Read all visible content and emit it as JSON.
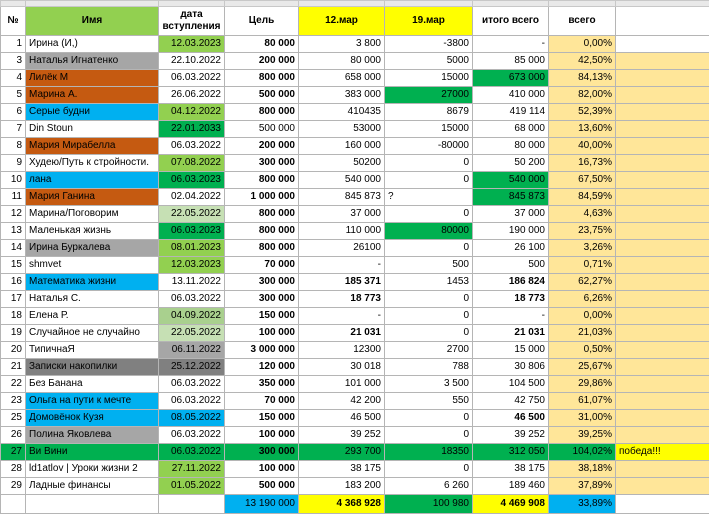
{
  "headers": {
    "num": "№",
    "name": "Имя",
    "date": "дата вступления",
    "goal": "Цель",
    "mar12": "12.мар",
    "mar19": "19.мар",
    "total": "итого всего",
    "pct": "всего"
  },
  "colors": {
    "header_green": "#92d050",
    "header_yellow": "#ffff00",
    "pct_yellow": "#ffe699",
    "row_green": "#00b050"
  },
  "rows": [
    {
      "num": "1",
      "name": "Ирина (И,)",
      "date": "12.03.2023",
      "goal": "80 000",
      "m12": "3 800",
      "m19": "-3800",
      "total": "-",
      "pct": "0,00%",
      "name_bg": "#ffffff",
      "date_bg": "#92d050",
      "goal_bold": true,
      "total_bg": "#ffffff",
      "pct_bg": "#ffe699",
      "extra": "",
      "extra_bg": "#ffffff"
    },
    {
      "num": "3",
      "name": "Наталья Игнатенко",
      "date": "22.10.2022",
      "goal": "200 000",
      "m12": "80 000",
      "m19": "5000",
      "total": "85 000",
      "pct": "42,50%",
      "name_bg": "#a6a6a6",
      "date_bg": "#ffffff",
      "goal_bold": true,
      "total_bg": "#ffffff",
      "pct_bg": "#ffe699",
      "extra": "",
      "extra_bg": "#ffe699"
    },
    {
      "num": "4",
      "name": "Лилёк М",
      "date": "06.03.2022",
      "goal": "800 000",
      "m12": "658 000",
      "m19": "15000",
      "total": "673 000",
      "pct": "84,13%",
      "name_bg": "#c55a11",
      "date_bg": "#ffffff",
      "goal_bold": true,
      "total_bg": "#00b050",
      "pct_bg": "#ffe699",
      "extra": "",
      "extra_bg": "#ffe699"
    },
    {
      "num": "5",
      "name": "Марина А.",
      "date": "26.06.2022",
      "goal": "500 000",
      "m12": "383 000",
      "m19": "27000",
      "total": "410 000",
      "pct": "82,00%",
      "name_bg": "#c55a11",
      "date_bg": "#ffffff",
      "goal_bold": true,
      "total_bg": "#ffffff",
      "pct_bg": "#ffe699",
      "extra": "",
      "extra_bg": "#ffe699",
      "m19_bg": "#00b050"
    },
    {
      "num": "6",
      "name": "Серые будни",
      "date": "04.12.2022",
      "goal": "800 000",
      "m12": "410435",
      "m19": "8679",
      "total": "419 114",
      "pct": "52,39%",
      "name_bg": "#00b0f0",
      "date_bg": "#92d050",
      "goal_bold": true,
      "total_bg": "#ffffff",
      "pct_bg": "#ffe699",
      "extra": "",
      "extra_bg": "#ffe699"
    },
    {
      "num": "7",
      "name": "Din Stoun",
      "date": "22.01.2033",
      "goal": "500 000",
      "m12": "53000",
      "m19": "15000",
      "total": "68 000",
      "pct": "13,60%",
      "name_bg": "#ffffff",
      "date_bg": "#00b050",
      "goal_bold": false,
      "total_bg": "#ffffff",
      "pct_bg": "#ffe699",
      "extra": "",
      "extra_bg": "#ffe699"
    },
    {
      "num": "8",
      "name": "Мария Мирабелла",
      "date": "06.03.2022",
      "goal": "200 000",
      "m12": "160 000",
      "m19": "-80000",
      "total": "80 000",
      "pct": "40,00%",
      "name_bg": "#c55a11",
      "date_bg": "#ffffff",
      "goal_bold": true,
      "total_bg": "#ffffff",
      "pct_bg": "#ffe699",
      "extra": "",
      "extra_bg": "#ffe699"
    },
    {
      "num": "9",
      "name": "Худею/Путь к стройности.",
      "date": "07.08.2022",
      "goal": "300 000",
      "m12": "50200",
      "m19": "0",
      "total": "50 200",
      "pct": "16,73%",
      "name_bg": "#ffffff",
      "date_bg": "#92d050",
      "goal_bold": true,
      "total_bg": "#ffffff",
      "pct_bg": "#ffe699",
      "extra": "",
      "extra_bg": "#ffe699"
    },
    {
      "num": "10",
      "name": "лана",
      "date": "06.03.2023",
      "goal": "800 000",
      "m12": "540 000",
      "m19": "0",
      "total": "540 000",
      "pct": "67,50%",
      "name_bg": "#00b0f0",
      "date_bg": "#00b050",
      "goal_bold": true,
      "total_bg": "#00b050",
      "pct_bg": "#ffe699",
      "extra": "",
      "extra_bg": "#ffe699"
    },
    {
      "num": "11",
      "name": "Мария Ганина",
      "date": "02.04.2022",
      "goal": "1 000 000",
      "m12": "845 873",
      "m19": "",
      "total": "845 873",
      "pct": "84,59%",
      "name_bg": "#c55a11",
      "date_bg": "#ffffff",
      "goal_bold": true,
      "total_bg": "#00b050",
      "pct_bg": "#ffe699",
      "extra": "",
      "extra_bg": "#ffe699",
      "m19_note": "?"
    },
    {
      "num": "12",
      "name": "Марина/Поговорим",
      "date": "22.05.2022",
      "goal": "800 000",
      "m12": "37 000",
      "m19": "0",
      "total": "37 000",
      "pct": "4,63%",
      "name_bg": "#ffffff",
      "date_bg": "#c6e0b4",
      "goal_bold": true,
      "total_bg": "#ffffff",
      "pct_bg": "#ffe699",
      "extra": "",
      "extra_bg": "#ffe699"
    },
    {
      "num": "13",
      "name": "Маленькая жизнь",
      "date": "06.03.2023",
      "goal": "800 000",
      "m12": "110 000",
      "m19": "80000",
      "total": "190 000",
      "pct": "23,75%",
      "name_bg": "#ffffff",
      "date_bg": "#00b050",
      "goal_bold": true,
      "total_bg": "#ffffff",
      "pct_bg": "#ffe699",
      "extra": "",
      "extra_bg": "#ffe699",
      "m19_bg": "#00b050"
    },
    {
      "num": "14",
      "name": "Ирина Буркалева",
      "date": "08.01.2023",
      "goal": "800 000",
      "m12": "26100",
      "m19": "0",
      "total": "26 100",
      "pct": "3,26%",
      "name_bg": "#a6a6a6",
      "date_bg": "#92d050",
      "goal_bold": true,
      "total_bg": "#ffffff",
      "pct_bg": "#ffe699",
      "extra": "",
      "extra_bg": "#ffe699"
    },
    {
      "num": "15",
      "name": "shmvet",
      "date": "12.03.2023",
      "goal": "70 000",
      "m12": "-",
      "m19": "500",
      "total": "500",
      "pct": "0,71%",
      "name_bg": "#ffffff",
      "date_bg": "#92d050",
      "goal_bold": true,
      "total_bg": "#ffffff",
      "pct_bg": "#ffe699",
      "extra": "",
      "extra_bg": "#ffe699"
    },
    {
      "num": "16",
      "name": "Математика жизни",
      "date": "13.11.2022",
      "goal": "300 000",
      "m12": "185 371",
      "m19": "1453",
      "total": "186 824",
      "pct": "62,27%",
      "name_bg": "#00b0f0",
      "date_bg": "#ffffff",
      "goal_bold": true,
      "total_bg": "#ffffff",
      "pct_bg": "#ffe699",
      "extra": "",
      "extra_bg": "#ffe699",
      "m12_bold": true,
      "total_bold": true
    },
    {
      "num": "17",
      "name": "Наталья С.",
      "date": "06.03.2022",
      "goal": "300 000",
      "m12": "18 773",
      "m19": "0",
      "total": "18 773",
      "pct": "6,26%",
      "name_bg": "#ffffff",
      "date_bg": "#ffffff",
      "goal_bold": true,
      "total_bg": "#ffffff",
      "pct_bg": "#ffe699",
      "extra": "",
      "extra_bg": "#ffe699",
      "m12_bold": true,
      "total_bold": true
    },
    {
      "num": "18",
      "name": "Елена Р.",
      "date": "04.09.2022",
      "goal": "150 000",
      "m12": "-",
      "m19": "0",
      "total": "-",
      "pct": "0,00%",
      "name_bg": "#ffffff",
      "date_bg": "#a9d08e",
      "goal_bold": true,
      "total_bg": "#ffffff",
      "pct_bg": "#ffe699",
      "extra": "",
      "extra_bg": "#ffe699"
    },
    {
      "num": "19",
      "name": " Случайное не случайно",
      "date": "22.05.2022",
      "goal": "100 000",
      "m12": "21 031",
      "m19": "0",
      "total": "21 031",
      "pct": "21,03%",
      "name_bg": "#ffffff",
      "date_bg": "#c6e0b4",
      "goal_bold": true,
      "total_bg": "#ffffff",
      "pct_bg": "#ffe699",
      "extra": "",
      "extra_bg": "#ffe699",
      "m12_bold": true,
      "total_bold": true
    },
    {
      "num": "20",
      "name": "ТипичнаЯ",
      "date": "06.11.2022",
      "goal": "3 000 000",
      "m12": "12300",
      "m19": "2700",
      "total": "15 000",
      "pct": "0,50%",
      "name_bg": "#ffffff",
      "date_bg": "#a6a6a6",
      "goal_bold": true,
      "total_bg": "#ffffff",
      "pct_bg": "#ffe699",
      "extra": "",
      "extra_bg": "#ffe699"
    },
    {
      "num": "21",
      "name": "Записки накопилки",
      "date": "25.12.2022",
      "goal": "120 000",
      "m12": "30 018",
      "m19": "788",
      "total": "30 806",
      "pct": "25,67%",
      "name_bg": "#808080",
      "date_bg": "#808080",
      "goal_bold": true,
      "total_bg": "#ffffff",
      "pct_bg": "#ffe699",
      "extra": "",
      "extra_bg": "#ffe699"
    },
    {
      "num": "22",
      "name": "Без Банана",
      "date": "06.03.2022",
      "goal": "350 000",
      "m12": "101 000",
      "m19": "3 500",
      "total": "104 500",
      "pct": "29,86%",
      "name_bg": "#ffffff",
      "date_bg": "#ffffff",
      "goal_bold": true,
      "total_bg": "#ffffff",
      "pct_bg": "#ffe699",
      "extra": "",
      "extra_bg": "#ffe699"
    },
    {
      "num": "23",
      "name": "Ольга на пути к мечте",
      "date": "06.03.2022",
      "goal": "70 000",
      "m12": "42 200",
      "m19": "550",
      "total": "42 750",
      "pct": "61,07%",
      "name_bg": "#00b0f0",
      "date_bg": "#ffffff",
      "goal_bold": true,
      "total_bg": "#ffffff",
      "pct_bg": "#ffe699",
      "extra": "",
      "extra_bg": "#ffe699"
    },
    {
      "num": "25",
      "name": " Домовёнок Кузя",
      "date": "08.05.2022",
      "goal": "150 000",
      "m12": "46 500",
      "m19": "0",
      "total": "46 500",
      "pct": "31,00%",
      "name_bg": "#00b0f0",
      "date_bg": "#00b0f0",
      "goal_bold": true,
      "total_bg": "#ffffff",
      "pct_bg": "#ffe699",
      "extra": "",
      "extra_bg": "#ffe699",
      "total_bold": true
    },
    {
      "num": "26",
      "name": "Полина Яковлева",
      "date": "06.03.2022",
      "goal": "100 000",
      "m12": "39 252",
      "m19": "0",
      "total": "39 252",
      "pct": "39,25%",
      "name_bg": "#a6a6a6",
      "date_bg": "#ffffff",
      "goal_bold": true,
      "total_bg": "#ffffff",
      "pct_bg": "#ffe699",
      "extra": "",
      "extra_bg": "#ffe699"
    },
    {
      "num": "27",
      "name": "Ви Вини",
      "date": "06.03.2022",
      "goal": "300 000",
      "m12": "293 700",
      "m19": "18350",
      "total": "312 050",
      "pct": "104,02%",
      "name_bg": "#00b050",
      "date_bg": "#00b050",
      "goal_bold": true,
      "total_bg": "#00b050",
      "pct_bg": "#00b050",
      "extra": "победа!!!",
      "extra_bg": "#ffff00",
      "row_bg": "#00b050"
    },
    {
      "num": "28",
      "name": "ld1atlov |  Уроки жизни 2",
      "date": "27.11.2022",
      "goal": "100 000",
      "m12": "38 175",
      "m19": "0",
      "total": "38 175",
      "pct": "38,18%",
      "name_bg": "#ffffff",
      "date_bg": "#92d050",
      "goal_bold": true,
      "total_bg": "#ffffff",
      "pct_bg": "#ffe699",
      "extra": "",
      "extra_bg": "#ffe699"
    },
    {
      "num": "29",
      "name": "Ладные финансы",
      "date": "01.05.2022",
      "goal": "500 000",
      "m12": "183 200",
      "m19": "6 260",
      "total": "189 460",
      "pct": "37,89%",
      "name_bg": "#ffffff",
      "date_bg": "#92d050",
      "goal_bold": true,
      "total_bg": "#ffffff",
      "pct_bg": "#ffe699",
      "extra": "",
      "extra_bg": "#ffe699"
    }
  ],
  "totals": {
    "goal": "13 190 000",
    "m12": "4 368 928",
    "m19": "100 980",
    "total": "4 469 908",
    "pct": "33,89%"
  }
}
